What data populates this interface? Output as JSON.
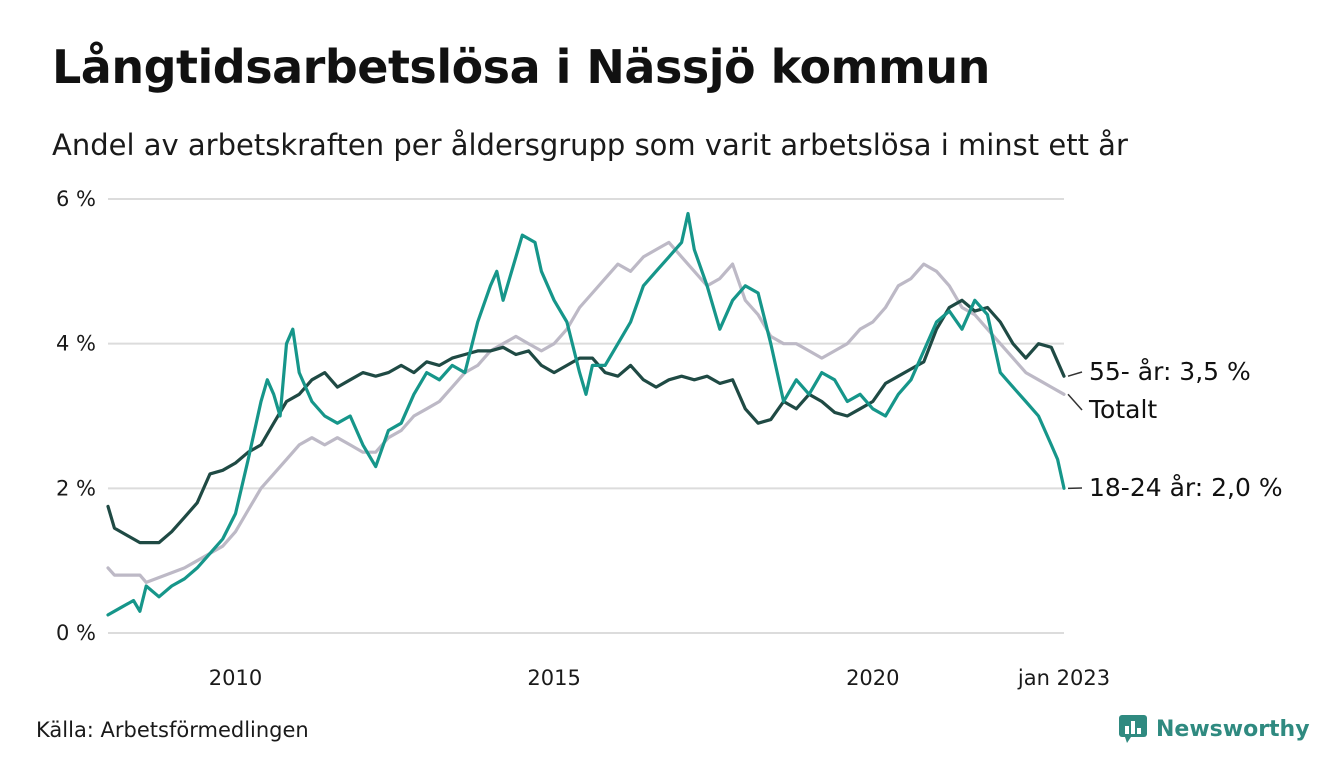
{
  "header": {
    "title": "Långtidsarbetslösa i Nässjö kommun",
    "subtitle": "Andel av arbetskraften per åldersgrupp som varit arbetslösa i minst ett år"
  },
  "footer": {
    "source": "Källa: Arbetsförmedlingen",
    "brand": "Newsworthy",
    "brand_icon": "bar-chart-icon"
  },
  "colors": {
    "youth": "#16968a",
    "senior": "#1f4a44",
    "total": "#bdb9c6",
    "grid": "#dcdcdc",
    "brand": "#2f8a80"
  },
  "chart_data": {
    "type": "line",
    "x_unit": "year (decimal)",
    "xlim": [
      2008.0,
      2023.0
    ],
    "ylim": [
      0,
      6
    ],
    "y_ticks": [
      0,
      2,
      4,
      6
    ],
    "y_tick_labels": [
      "0 %",
      "2 %",
      "4 %",
      "6 %"
    ],
    "x_ticks": [
      2010,
      2015,
      2020,
      2023.0
    ],
    "x_tick_labels": [
      "2010",
      "2015",
      "2020",
      "jan 2023"
    ],
    "grid": true,
    "legend": "end-labels",
    "series": [
      {
        "key": "total",
        "name": "Totalt",
        "end_label": "Totalt",
        "points": [
          [
            2008.0,
            0.9
          ],
          [
            2008.1,
            0.8
          ],
          [
            2008.5,
            0.8
          ],
          [
            2008.6,
            0.7
          ],
          [
            2008.9,
            0.8
          ],
          [
            2009.2,
            0.9
          ],
          [
            2009.4,
            1.0
          ],
          [
            2009.6,
            1.1
          ],
          [
            2009.8,
            1.2
          ],
          [
            2010.0,
            1.4
          ],
          [
            2010.2,
            1.7
          ],
          [
            2010.4,
            2.0
          ],
          [
            2010.6,
            2.2
          ],
          [
            2010.8,
            2.4
          ],
          [
            2011.0,
            2.6
          ],
          [
            2011.2,
            2.7
          ],
          [
            2011.4,
            2.6
          ],
          [
            2011.6,
            2.7
          ],
          [
            2011.8,
            2.6
          ],
          [
            2012.0,
            2.5
          ],
          [
            2012.2,
            2.5
          ],
          [
            2012.4,
            2.7
          ],
          [
            2012.6,
            2.8
          ],
          [
            2012.8,
            3.0
          ],
          [
            2013.0,
            3.1
          ],
          [
            2013.2,
            3.2
          ],
          [
            2013.4,
            3.4
          ],
          [
            2013.6,
            3.6
          ],
          [
            2013.8,
            3.7
          ],
          [
            2014.0,
            3.9
          ],
          [
            2014.2,
            4.0
          ],
          [
            2014.4,
            4.1
          ],
          [
            2014.6,
            4.0
          ],
          [
            2014.8,
            3.9
          ],
          [
            2015.0,
            4.0
          ],
          [
            2015.2,
            4.2
          ],
          [
            2015.4,
            4.5
          ],
          [
            2015.6,
            4.7
          ],
          [
            2015.8,
            4.9
          ],
          [
            2016.0,
            5.1
          ],
          [
            2016.2,
            5.0
          ],
          [
            2016.4,
            5.2
          ],
          [
            2016.6,
            5.3
          ],
          [
            2016.8,
            5.4
          ],
          [
            2017.0,
            5.2
          ],
          [
            2017.2,
            5.0
          ],
          [
            2017.4,
            4.8
          ],
          [
            2017.6,
            4.9
          ],
          [
            2017.8,
            5.1
          ],
          [
            2018.0,
            4.6
          ],
          [
            2018.2,
            4.4
          ],
          [
            2018.4,
            4.1
          ],
          [
            2018.6,
            4.0
          ],
          [
            2018.8,
            4.0
          ],
          [
            2019.0,
            3.9
          ],
          [
            2019.2,
            3.8
          ],
          [
            2019.4,
            3.9
          ],
          [
            2019.6,
            4.0
          ],
          [
            2019.8,
            4.2
          ],
          [
            2020.0,
            4.3
          ],
          [
            2020.2,
            4.5
          ],
          [
            2020.4,
            4.8
          ],
          [
            2020.6,
            4.9
          ],
          [
            2020.8,
            5.1
          ],
          [
            2021.0,
            5.0
          ],
          [
            2021.2,
            4.8
          ],
          [
            2021.4,
            4.5
          ],
          [
            2021.6,
            4.4
          ],
          [
            2021.8,
            4.2
          ],
          [
            2022.0,
            4.0
          ],
          [
            2022.2,
            3.8
          ],
          [
            2022.4,
            3.6
          ],
          [
            2022.6,
            3.5
          ],
          [
            2022.8,
            3.4
          ],
          [
            2023.0,
            3.3
          ]
        ]
      },
      {
        "key": "senior",
        "name": "55- år",
        "end_label": "55- år: 3,5 %",
        "points": [
          [
            2008.0,
            1.75
          ],
          [
            2008.1,
            1.45
          ],
          [
            2008.3,
            1.35
          ],
          [
            2008.5,
            1.25
          ],
          [
            2008.8,
            1.25
          ],
          [
            2009.0,
            1.4
          ],
          [
            2009.2,
            1.6
          ],
          [
            2009.4,
            1.8
          ],
          [
            2009.6,
            2.2
          ],
          [
            2009.8,
            2.25
          ],
          [
            2010.0,
            2.35
          ],
          [
            2010.2,
            2.5
          ],
          [
            2010.4,
            2.6
          ],
          [
            2010.6,
            2.9
          ],
          [
            2010.8,
            3.2
          ],
          [
            2011.0,
            3.3
          ],
          [
            2011.2,
            3.5
          ],
          [
            2011.4,
            3.6
          ],
          [
            2011.6,
            3.4
          ],
          [
            2011.8,
            3.5
          ],
          [
            2012.0,
            3.6
          ],
          [
            2012.2,
            3.55
          ],
          [
            2012.4,
            3.6
          ],
          [
            2012.6,
            3.7
          ],
          [
            2012.8,
            3.6
          ],
          [
            2013.0,
            3.75
          ],
          [
            2013.2,
            3.7
          ],
          [
            2013.4,
            3.8
          ],
          [
            2013.6,
            3.85
          ],
          [
            2013.8,
            3.9
          ],
          [
            2014.0,
            3.9
          ],
          [
            2014.2,
            3.95
          ],
          [
            2014.4,
            3.85
          ],
          [
            2014.6,
            3.9
          ],
          [
            2014.8,
            3.7
          ],
          [
            2015.0,
            3.6
          ],
          [
            2015.2,
            3.7
          ],
          [
            2015.4,
            3.8
          ],
          [
            2015.6,
            3.8
          ],
          [
            2015.8,
            3.6
          ],
          [
            2016.0,
            3.55
          ],
          [
            2016.2,
            3.7
          ],
          [
            2016.4,
            3.5
          ],
          [
            2016.6,
            3.4
          ],
          [
            2016.8,
            3.5
          ],
          [
            2017.0,
            3.55
          ],
          [
            2017.2,
            3.5
          ],
          [
            2017.4,
            3.55
          ],
          [
            2017.6,
            3.45
          ],
          [
            2017.8,
            3.5
          ],
          [
            2018.0,
            3.1
          ],
          [
            2018.2,
            2.9
          ],
          [
            2018.4,
            2.95
          ],
          [
            2018.6,
            3.2
          ],
          [
            2018.8,
            3.1
          ],
          [
            2019.0,
            3.3
          ],
          [
            2019.2,
            3.2
          ],
          [
            2019.4,
            3.05
          ],
          [
            2019.6,
            3.0
          ],
          [
            2019.8,
            3.1
          ],
          [
            2020.0,
            3.2
          ],
          [
            2020.2,
            3.45
          ],
          [
            2020.4,
            3.55
          ],
          [
            2020.6,
            3.65
          ],
          [
            2020.8,
            3.75
          ],
          [
            2021.0,
            4.2
          ],
          [
            2021.2,
            4.5
          ],
          [
            2021.4,
            4.6
          ],
          [
            2021.6,
            4.45
          ],
          [
            2021.8,
            4.5
          ],
          [
            2022.0,
            4.3
          ],
          [
            2022.2,
            4.0
          ],
          [
            2022.4,
            3.8
          ],
          [
            2022.6,
            4.0
          ],
          [
            2022.8,
            3.95
          ],
          [
            2023.0,
            3.55
          ]
        ]
      },
      {
        "key": "youth",
        "name": "18-24 år",
        "end_label": "18-24 år: 2,0 %",
        "points": [
          [
            2008.0,
            0.25
          ],
          [
            2008.2,
            0.35
          ],
          [
            2008.4,
            0.45
          ],
          [
            2008.5,
            0.3
          ],
          [
            2008.6,
            0.65
          ],
          [
            2008.8,
            0.5
          ],
          [
            2009.0,
            0.65
          ],
          [
            2009.2,
            0.75
          ],
          [
            2009.4,
            0.9
          ],
          [
            2009.6,
            1.1
          ],
          [
            2009.8,
            1.3
          ],
          [
            2010.0,
            1.65
          ],
          [
            2010.2,
            2.4
          ],
          [
            2010.4,
            3.2
          ],
          [
            2010.5,
            3.5
          ],
          [
            2010.6,
            3.3
          ],
          [
            2010.7,
            3.0
          ],
          [
            2010.8,
            4.0
          ],
          [
            2010.9,
            4.2
          ],
          [
            2011.0,
            3.6
          ],
          [
            2011.2,
            3.2
          ],
          [
            2011.4,
            3.0
          ],
          [
            2011.6,
            2.9
          ],
          [
            2011.8,
            3.0
          ],
          [
            2012.0,
            2.6
          ],
          [
            2012.2,
            2.3
          ],
          [
            2012.4,
            2.8
          ],
          [
            2012.6,
            2.9
          ],
          [
            2012.8,
            3.3
          ],
          [
            2013.0,
            3.6
          ],
          [
            2013.2,
            3.5
          ],
          [
            2013.4,
            3.7
          ],
          [
            2013.6,
            3.6
          ],
          [
            2013.8,
            4.3
          ],
          [
            2014.0,
            4.8
          ],
          [
            2014.1,
            5.0
          ],
          [
            2014.2,
            4.6
          ],
          [
            2014.4,
            5.2
          ],
          [
            2014.5,
            5.5
          ],
          [
            2014.7,
            5.4
          ],
          [
            2014.8,
            5.0
          ],
          [
            2015.0,
            4.6
          ],
          [
            2015.2,
            4.3
          ],
          [
            2015.4,
            3.6
          ],
          [
            2015.5,
            3.3
          ],
          [
            2015.6,
            3.7
          ],
          [
            2015.8,
            3.7
          ],
          [
            2016.0,
            4.0
          ],
          [
            2016.2,
            4.3
          ],
          [
            2016.4,
            4.8
          ],
          [
            2016.6,
            5.0
          ],
          [
            2016.8,
            5.2
          ],
          [
            2017.0,
            5.4
          ],
          [
            2017.1,
            5.8
          ],
          [
            2017.2,
            5.3
          ],
          [
            2017.4,
            4.8
          ],
          [
            2017.6,
            4.2
          ],
          [
            2017.8,
            4.6
          ],
          [
            2018.0,
            4.8
          ],
          [
            2018.2,
            4.7
          ],
          [
            2018.4,
            4.0
          ],
          [
            2018.6,
            3.2
          ],
          [
            2018.8,
            3.5
          ],
          [
            2019.0,
            3.3
          ],
          [
            2019.2,
            3.6
          ],
          [
            2019.4,
            3.5
          ],
          [
            2019.6,
            3.2
          ],
          [
            2019.8,
            3.3
          ],
          [
            2020.0,
            3.1
          ],
          [
            2020.2,
            3.0
          ],
          [
            2020.4,
            3.3
          ],
          [
            2020.6,
            3.5
          ],
          [
            2020.8,
            3.9
          ],
          [
            2021.0,
            4.3
          ],
          [
            2021.2,
            4.45
          ],
          [
            2021.4,
            4.2
          ],
          [
            2021.6,
            4.6
          ],
          [
            2021.8,
            4.4
          ],
          [
            2022.0,
            3.6
          ],
          [
            2022.2,
            3.4
          ],
          [
            2022.4,
            3.2
          ],
          [
            2022.6,
            3.0
          ],
          [
            2022.8,
            2.6
          ],
          [
            2022.9,
            2.4
          ],
          [
            2023.0,
            2.0
          ]
        ]
      }
    ]
  }
}
